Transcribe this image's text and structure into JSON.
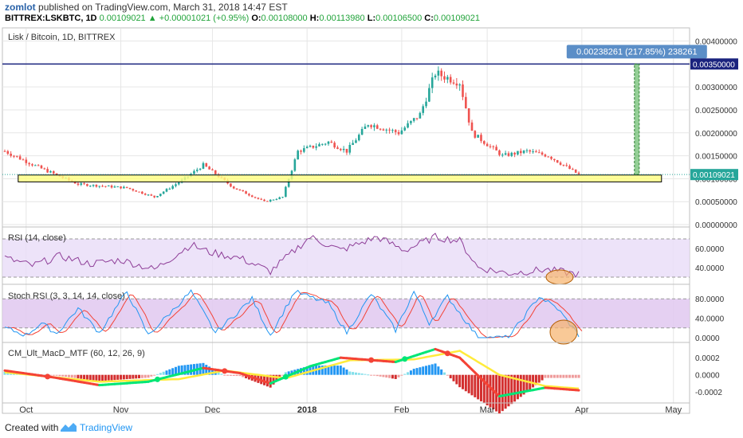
{
  "header": {
    "author": "zomlot",
    "published": "published on TradingView.com, March 31, 2018 14:47 EST",
    "symbol": "BITTREX:LSKBTC, 1D",
    "last": "0.00109021",
    "change": "+0.00001021 (+0.95%)",
    "o_label": "O:",
    "o": "0.00108000",
    "h_label": "H:",
    "h": "0.00113980",
    "l_label": "L:",
    "l": "0.00106500",
    "c_label": "C:",
    "c": "0.00109021"
  },
  "chart_data": {
    "type": "candlestick",
    "title": "Lisk / Bitcoin, 1D, BITTREX",
    "x_ticks": [
      "Oct",
      "Nov",
      "Dec",
      "2018",
      "Feb",
      "Mar",
      "Apr",
      "May"
    ],
    "price_axis_ticks": [
      "0.00400000",
      "0.00350000",
      "0.00300000",
      "0.00250000",
      "0.00200000",
      "0.00150000",
      "0.00100000",
      "0.00050000",
      "0.00000000"
    ],
    "price_ylim": [
      0,
      0.0042
    ],
    "current_price_label": "0.00109021",
    "target_line_label": "0.00350000",
    "target_price": 0.0035,
    "target_tooltip": "0.00238261 (217.85%) 238261",
    "support_zone": [
      0.00093,
      0.00108
    ],
    "price_keypoints": [
      {
        "date": "2017-09-24",
        "close": 0.0016
      },
      {
        "date": "2017-10-05",
        "close": 0.00125
      },
      {
        "date": "2017-10-18",
        "close": 0.00088
      },
      {
        "date": "2017-11-03",
        "close": 0.0008
      },
      {
        "date": "2017-11-12",
        "close": 0.0006
      },
      {
        "date": "2017-11-22",
        "close": 0.001
      },
      {
        "date": "2017-11-28",
        "close": 0.0013
      },
      {
        "date": "2017-12-08",
        "close": 0.0008
      },
      {
        "date": "2017-12-18",
        "close": 0.0005
      },
      {
        "date": "2017-12-24",
        "close": 0.0006
      },
      {
        "date": "2017-12-29",
        "close": 0.0016
      },
      {
        "date": "2018-01-08",
        "close": 0.0018
      },
      {
        "date": "2018-01-14",
        "close": 0.0016
      },
      {
        "date": "2018-01-21",
        "close": 0.0022
      },
      {
        "date": "2018-01-31",
        "close": 0.002
      },
      {
        "date": "2018-02-07",
        "close": 0.0024
      },
      {
        "date": "2018-02-12",
        "close": 0.0033
      },
      {
        "date": "2018-02-20",
        "close": 0.0031
      },
      {
        "date": "2018-02-24",
        "close": 0.002
      },
      {
        "date": "2018-03-06",
        "close": 0.0015
      },
      {
        "date": "2018-03-14",
        "close": 0.0016
      },
      {
        "date": "2018-03-21",
        "close": 0.0015
      },
      {
        "date": "2018-03-31",
        "close": 0.00109
      }
    ],
    "rsi": {
      "label": "RSI (14, close)",
      "ticks": [
        "60.0000",
        "40.0000"
      ],
      "ylim": [
        25,
        80
      ],
      "band": [
        30,
        70
      ],
      "keypoints": [
        {
          "date": "2017-09-24",
          "v": 50
        },
        {
          "date": "2017-10-03",
          "v": 42
        },
        {
          "date": "2017-10-12",
          "v": 52
        },
        {
          "date": "2017-10-22",
          "v": 44
        },
        {
          "date": "2017-11-01",
          "v": 48
        },
        {
          "date": "2017-11-12",
          "v": 38
        },
        {
          "date": "2017-11-24",
          "v": 64
        },
        {
          "date": "2017-11-30",
          "v": 56
        },
        {
          "date": "2017-12-10",
          "v": 50
        },
        {
          "date": "2017-12-20",
          "v": 36
        },
        {
          "date": "2018-01-02",
          "v": 72
        },
        {
          "date": "2018-01-12",
          "v": 58
        },
        {
          "date": "2018-01-24",
          "v": 72
        },
        {
          "date": "2018-02-02",
          "v": 58
        },
        {
          "date": "2018-02-12",
          "v": 72
        },
        {
          "date": "2018-02-20",
          "v": 68
        },
        {
          "date": "2018-02-26",
          "v": 40
        },
        {
          "date": "2018-03-08",
          "v": 34
        },
        {
          "date": "2018-03-20",
          "v": 38
        },
        {
          "date": "2018-03-31",
          "v": 33
        }
      ]
    },
    "stoch_rsi": {
      "label": "Stoch RSI (3, 3, 14, 14, close)",
      "ticks": [
        "80.0000",
        "40.0000",
        "0.0000"
      ],
      "ylim": [
        -5,
        105
      ],
      "band": [
        20,
        80
      ],
      "keypoints": [
        {
          "date": "2017-09-24",
          "v": 20
        },
        {
          "date": "2017-10-01",
          "v": 5
        },
        {
          "date": "2017-10-06",
          "v": 30
        },
        {
          "date": "2017-10-11",
          "v": 8
        },
        {
          "date": "2017-10-18",
          "v": 60
        },
        {
          "date": "2017-10-25",
          "v": 10
        },
        {
          "date": "2017-11-03",
          "v": 95
        },
        {
          "date": "2017-11-10",
          "v": 5
        },
        {
          "date": "2017-11-24",
          "v": 95
        },
        {
          "date": "2017-12-02",
          "v": 10
        },
        {
          "date": "2017-12-14",
          "v": 80
        },
        {
          "date": "2017-12-20",
          "v": 5
        },
        {
          "date": "2017-12-28",
          "v": 95
        },
        {
          "date": "2018-01-08",
          "v": 70
        },
        {
          "date": "2018-01-14",
          "v": 10
        },
        {
          "date": "2018-01-22",
          "v": 90
        },
        {
          "date": "2018-01-30",
          "v": 15
        },
        {
          "date": "2018-02-05",
          "v": 95
        },
        {
          "date": "2018-02-10",
          "v": 30
        },
        {
          "date": "2018-02-16",
          "v": 85
        },
        {
          "date": "2018-02-26",
          "v": 0
        },
        {
          "date": "2018-03-08",
          "v": 0
        },
        {
          "date": "2018-03-18",
          "v": 85
        },
        {
          "date": "2018-03-24",
          "v": 60
        },
        {
          "date": "2018-03-31",
          "v": 5
        }
      ]
    },
    "macd": {
      "label": "CM_Ult_MacD_MTF (60, 12, 26, 9)",
      "ticks": [
        "0.0002",
        "0.0000",
        "-0.0002"
      ],
      "ylim": [
        -0.0003,
        0.00035
      ],
      "keypoints": [
        {
          "date": "2017-09-24",
          "v": 5e-05
        },
        {
          "date": "2017-10-10",
          "v": -3e-05
        },
        {
          "date": "2017-10-25",
          "v": -0.00012
        },
        {
          "date": "2017-11-10",
          "v": -8e-05
        },
        {
          "date": "2017-11-28",
          "v": 8e-05
        },
        {
          "date": "2017-12-10",
          "v": 2e-05
        },
        {
          "date": "2017-12-20",
          "v": -0.0001
        },
        {
          "date": "2018-01-02",
          "v": 0.0001
        },
        {
          "date": "2018-01-12",
          "v": 0.0002
        },
        {
          "date": "2018-01-30",
          "v": 0.00015
        },
        {
          "date": "2018-02-12",
          "v": 0.0003
        },
        {
          "date": "2018-02-20",
          "v": 0.0002
        },
        {
          "date": "2018-03-05",
          "v": -0.00025
        },
        {
          "date": "2018-03-20",
          "v": -0.00015
        },
        {
          "date": "2018-03-31",
          "v": -0.00018
        }
      ],
      "signal_keypoints": [
        {
          "date": "2017-09-24",
          "v": 3e-05
        },
        {
          "date": "2017-10-25",
          "v": -8e-05
        },
        {
          "date": "2017-11-20",
          "v": -5e-05
        },
        {
          "date": "2017-12-05",
          "v": 5e-05
        },
        {
          "date": "2017-12-25",
          "v": -4e-05
        },
        {
          "date": "2018-01-15",
          "v": 0.00017
        },
        {
          "date": "2018-02-05",
          "v": 0.00018
        },
        {
          "date": "2018-02-20",
          "v": 0.00028
        },
        {
          "date": "2018-03-05",
          "v": 0.0
        },
        {
          "date": "2018-03-20",
          "v": -0.00013
        },
        {
          "date": "2018-03-31",
          "v": -0.00016
        }
      ]
    }
  },
  "colors": {
    "up": "#26a69a",
    "down": "#ef5350",
    "grid": "#e6e6e6",
    "indicator_band": "#e8dcf7",
    "rsi_line": "#8e3e98",
    "stoch_k": "#2196f3",
    "stoch_d": "#f44336",
    "support_fill": "#ffff80",
    "target_line": "#1a237e"
  },
  "footer": {
    "created_with": "Created with",
    "brand": "TradingView"
  }
}
